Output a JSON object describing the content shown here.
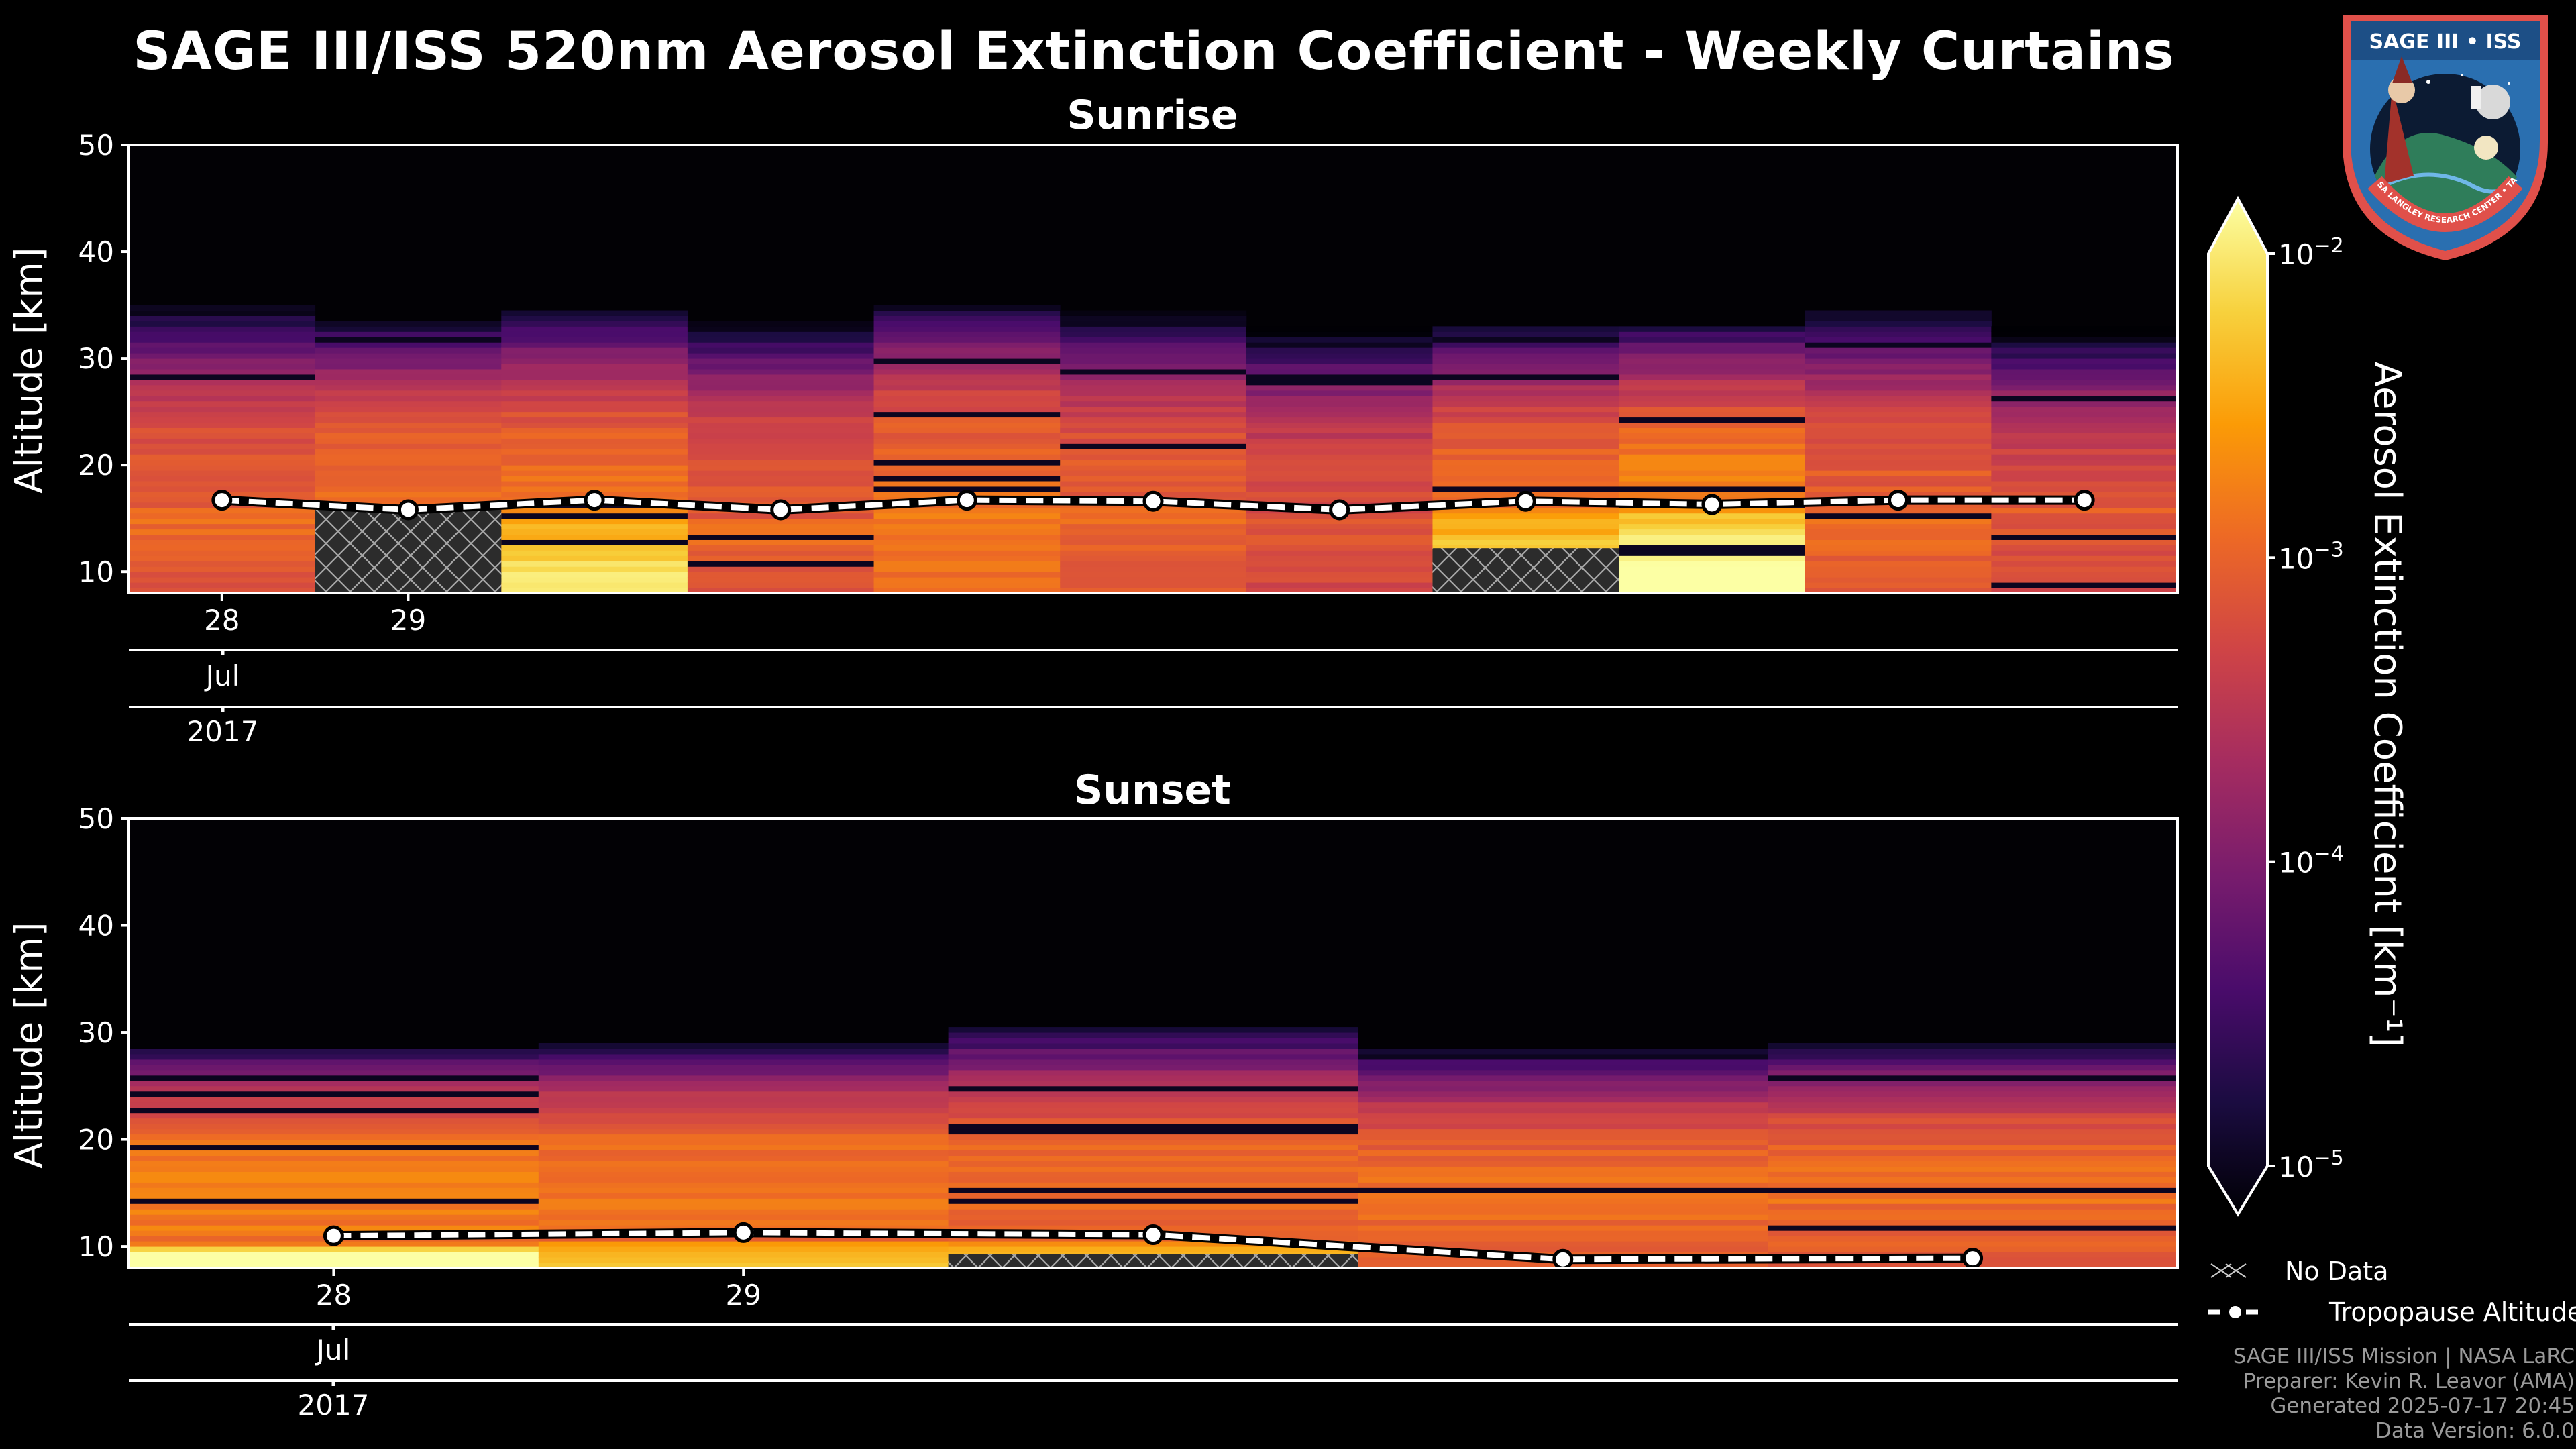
{
  "title": "SAGE III/ISS 520nm Aerosol Extinction Coefficient - Weekly Curtains",
  "logo": {
    "name": "SAGE III • ISS",
    "ring_text": "BALL • NASA LANGLEY RESEARCH CENTER • TAS-I • ESA"
  },
  "chart_data": [
    {
      "type": "heatmap",
      "title": "Sunrise",
      "ylabel": "Altitude [km]",
      "ylim": [
        8,
        50
      ],
      "yticks": [
        "10",
        "20",
        "30",
        "40",
        "50"
      ],
      "xticks": [
        {
          "day": "28",
          "t": 0.5
        },
        {
          "day": "29",
          "t": 1.5
        }
      ],
      "month_label": "Jul",
      "year_label": "2017",
      "columns": [
        {
          "top": 35,
          "peak": "low",
          "nodata_top": null,
          "trop": 16.7,
          "base": 0.55
        },
        {
          "top": 33.5,
          "peak": "low",
          "nodata_top": 15.8,
          "trop": 15.8,
          "base": 0.6
        },
        {
          "top": 34.5,
          "peak": "high",
          "nodata_top": null,
          "trop": 16.7,
          "base": 0.6
        },
        {
          "top": 33.5,
          "peak": "low",
          "nodata_top": null,
          "trop": 15.8,
          "base": 0.55
        },
        {
          "top": 35,
          "peak": "low",
          "nodata_top": null,
          "trop": 16.7,
          "base": 0.6
        },
        {
          "top": 34.5,
          "peak": "low",
          "nodata_top": null,
          "trop": 16.6,
          "base": 0.55
        },
        {
          "top": 33,
          "peak": "low",
          "nodata_top": null,
          "trop": 15.8,
          "base": 0.5
        },
        {
          "top": 33,
          "peak": "high",
          "nodata_top": 12.2,
          "trop": 16.6,
          "base": 0.6
        },
        {
          "top": 33,
          "peak": "vhigh",
          "nodata_top": null,
          "trop": 16.3,
          "base": 0.65
        },
        {
          "top": 34.5,
          "peak": "low",
          "nodata_top": null,
          "trop": 16.7,
          "base": 0.55
        },
        {
          "top": 33,
          "peak": "low",
          "nodata_top": null,
          "trop": 16.7,
          "base": 0.5
        }
      ]
    },
    {
      "type": "heatmap",
      "title": "Sunset",
      "ylabel": "Altitude [km]",
      "ylim": [
        8,
        50
      ],
      "yticks": [
        "10",
        "20",
        "30",
        "40",
        "50"
      ],
      "xticks": [
        {
          "day": "28",
          "t": 0.5
        },
        {
          "day": "29",
          "t": 1.5
        }
      ],
      "month_label": "Jul",
      "year_label": "2017",
      "columns": [
        {
          "top": 28.5,
          "peak": "vhigh",
          "nodata_top": null,
          "trop": 11.0,
          "base": 0.65
        },
        {
          "top": 29,
          "peak": "mid",
          "nodata_top": null,
          "trop": 11.3,
          "base": 0.62
        },
        {
          "top": 30.5,
          "peak": "mid",
          "nodata_top": 9.3,
          "trop": 11.1,
          "base": 0.6
        },
        {
          "top": 28.5,
          "peak": "mid",
          "nodata_top": null,
          "trop": 8.8,
          "base": 0.6
        },
        {
          "top": 29,
          "peak": "mid",
          "nodata_top": null,
          "trop": 8.9,
          "base": 0.6
        }
      ]
    }
  ],
  "colorbar": {
    "label": "Aerosol Extinction Coefficient [km⁻¹]",
    "ticks": [
      {
        "base": "10",
        "exp": "−2"
      },
      {
        "base": "10",
        "exp": "−3"
      },
      {
        "base": "10",
        "exp": "−4"
      },
      {
        "base": "10",
        "exp": "−5"
      }
    ],
    "colors": [
      "#000004",
      "#1b0c41",
      "#4a0c6b",
      "#781c6d",
      "#a52c60",
      "#cf4446",
      "#ed6925",
      "#fb9b06",
      "#f7d13d",
      "#fcffa4"
    ]
  },
  "legend": {
    "no_data": "No Data",
    "tropopause": "Tropopause Altitude"
  },
  "credits": [
    "SAGE III/ISS Mission | NASA LaRC",
    "Preparer: Kevin R. Leavor (AMA)",
    "Generated 2025-07-17 20:45",
    "Data Version: 6.0.0"
  ]
}
